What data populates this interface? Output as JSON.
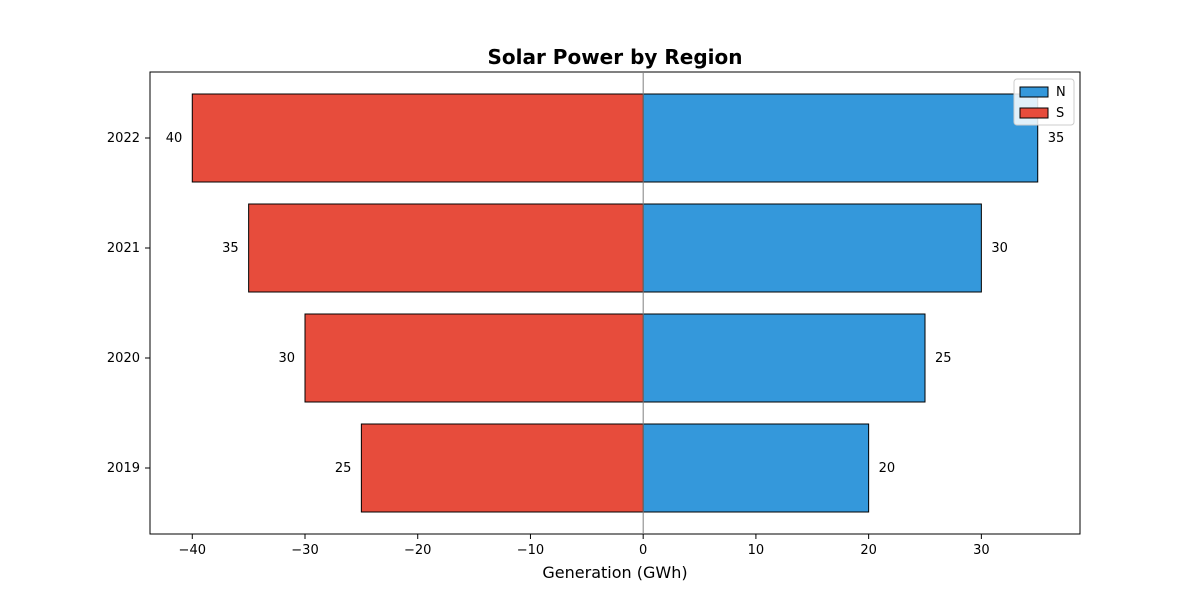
{
  "chart_data": {
    "type": "bar",
    "orientation": "horizontal",
    "title": "Solar Power by Region",
    "xlabel": "Generation (GWh)",
    "ylabel": "",
    "categories": [
      "2019",
      "2020",
      "2021",
      "2022"
    ],
    "series": [
      {
        "name": "N",
        "values": [
          20,
          25,
          30,
          35
        ],
        "direction": "positive",
        "color": "#3498db"
      },
      {
        "name": "S",
        "values": [
          25,
          30,
          35,
          40
        ],
        "direction": "negative",
        "color": "#e74c3c"
      }
    ],
    "x_ticks": [
      -40,
      -30,
      -20,
      -10,
      0,
      10,
      20,
      30
    ],
    "x_tick_labels": [
      "−40",
      "−30",
      "−20",
      "−10",
      "0",
      "10",
      "20",
      "30"
    ],
    "xlim": [
      -43.75,
      38.75
    ],
    "grid": false,
    "legend_position": "top-right"
  }
}
